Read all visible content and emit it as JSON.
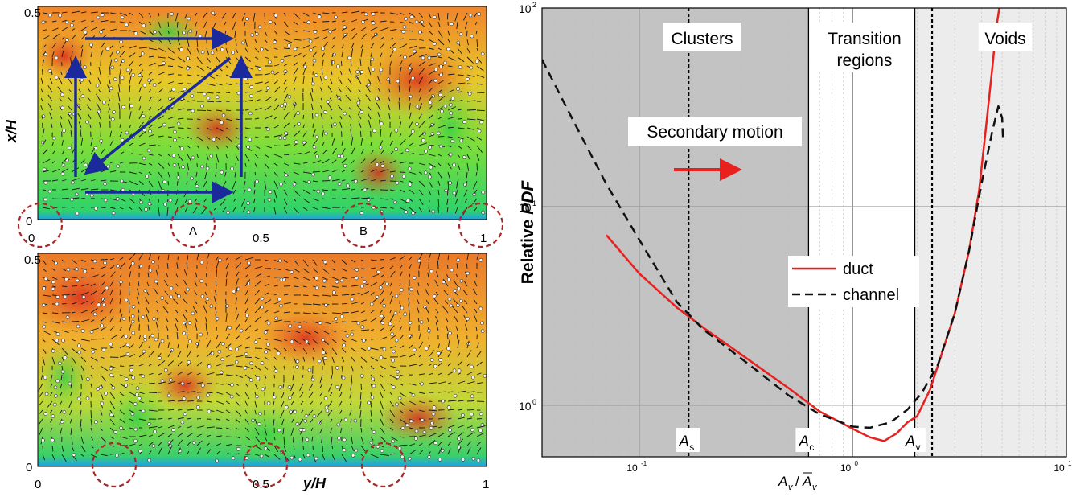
{
  "colors": {
    "cluster_shade": "#c3c3c3",
    "void_shade": "#ececec",
    "duct": "#e8201e",
    "channel": "#111111",
    "arrow_blue": "#1a2a9c",
    "circle_red": "#a82828"
  },
  "left_panels": {
    "top": {
      "y_label": "x/H",
      "y_ticks": [
        "0",
        "0.5"
      ],
      "x_ticks": [
        "0",
        "0.5",
        "1"
      ],
      "markers": [
        "A",
        "B"
      ]
    },
    "bottom": {
      "x_label": "y/H",
      "y_ticks": [
        "0",
        "0.5"
      ],
      "x_ticks": [
        "0",
        "0.5",
        "1"
      ]
    }
  },
  "chart_data": {
    "type": "line",
    "x_scale": "log",
    "y_scale": "log",
    "xlim": [
      0.035,
      10
    ],
    "ylim": [
      0.55,
      100
    ],
    "xlabel": "A_v / Ā_v",
    "xlabel_main": "A",
    "xlabel_sub": "v",
    "xlabel_bar": "A",
    "ylabel_prefix": "Relative ",
    "ylabel_italic": "PDF",
    "x_ticks": [
      {
        "value": 0.1,
        "base": "10",
        "exp": "-1"
      },
      {
        "value": 1,
        "base": "10",
        "exp": "0"
      },
      {
        "value": 10,
        "base": "10",
        "exp": "1"
      }
    ],
    "y_ticks": [
      {
        "value": 1,
        "base": "10",
        "exp": "0"
      },
      {
        "value": 10,
        "base": "10",
        "exp": "1"
      },
      {
        "value": 100,
        "base": "10",
        "exp": "2"
      }
    ],
    "regions": [
      {
        "label": "Clusters",
        "from": 0.035,
        "to": 0.62
      },
      {
        "label": "Transition regions",
        "label_lines": [
          "Transition",
          "regions"
        ],
        "from": 0.62,
        "to": 1.95
      },
      {
        "label": "Voids",
        "from": 1.95,
        "to": 10
      }
    ],
    "thresholds": [
      {
        "label": "A",
        "sub": "s",
        "value": 0.17,
        "style": "dotted"
      },
      {
        "label": "A",
        "sub": "c",
        "value": 0.62,
        "style": "solid"
      },
      {
        "label": "A",
        "sub": "v",
        "value": 1.95,
        "style": "solid"
      },
      {
        "label": "",
        "sub": "",
        "value": 2.35,
        "style": "dotted"
      }
    ],
    "annotation": "Secondary motion",
    "series": [
      {
        "name": "duct",
        "style": "solid",
        "color": "#e8201e",
        "points": [
          [
            0.07,
            7.2
          ],
          [
            0.1,
            4.6
          ],
          [
            0.15,
            3.1
          ],
          [
            0.2,
            2.45
          ],
          [
            0.3,
            1.8
          ],
          [
            0.5,
            1.22
          ],
          [
            0.7,
            0.93
          ],
          [
            1.0,
            0.76
          ],
          [
            1.2,
            0.69
          ],
          [
            1.4,
            0.66
          ],
          [
            1.6,
            0.72
          ],
          [
            1.8,
            0.82
          ],
          [
            2.0,
            0.88
          ],
          [
            2.3,
            1.2
          ],
          [
            2.6,
            1.8
          ],
          [
            3.0,
            2.9
          ],
          [
            3.5,
            6.0
          ],
          [
            3.9,
            12.0
          ],
          [
            4.2,
            25.0
          ],
          [
            4.5,
            50.0
          ],
          [
            4.7,
            80.0
          ],
          [
            4.85,
            100.0
          ]
        ]
      },
      {
        "name": "channel",
        "style": "dashed",
        "color": "#111111",
        "points": [
          [
            0.035,
            55.0
          ],
          [
            0.05,
            26.0
          ],
          [
            0.07,
            13.0
          ],
          [
            0.1,
            6.8
          ],
          [
            0.15,
            3.3
          ],
          [
            0.2,
            2.4
          ],
          [
            0.3,
            1.72
          ],
          [
            0.5,
            1.12
          ],
          [
            0.7,
            0.9
          ],
          [
            1.0,
            0.78
          ],
          [
            1.2,
            0.77
          ],
          [
            1.5,
            0.82
          ],
          [
            1.8,
            0.95
          ],
          [
            2.1,
            1.15
          ],
          [
            2.5,
            1.6
          ],
          [
            3.0,
            2.9
          ],
          [
            3.5,
            6.0
          ],
          [
            4.0,
            13.0
          ],
          [
            4.5,
            24.0
          ],
          [
            4.8,
            32.0
          ],
          [
            5.0,
            28.0
          ],
          [
            5.05,
            22.0
          ]
        ]
      }
    ]
  }
}
